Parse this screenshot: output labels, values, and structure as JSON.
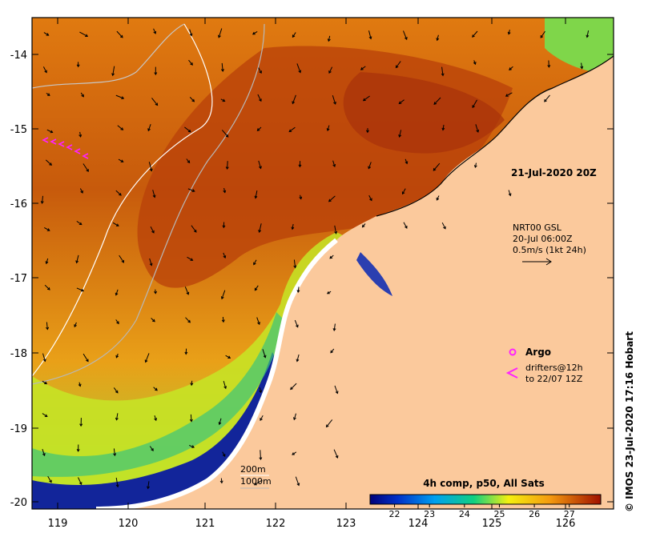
{
  "map": {
    "x_ticks": [
      "119",
      "120",
      "121",
      "122",
      "123",
      "124",
      "125",
      "126"
    ],
    "y_ticks": [
      "-14",
      "-15",
      "-16",
      "-17",
      "-18",
      "-19",
      "-20"
    ],
    "date_label": "21-Jul-2020 20Z",
    "currents": {
      "line1": "NRT00 GSL",
      "line2": "20-Jul 06:00Z",
      "line3": "0.5m/s (1kt 24h)"
    },
    "legend": {
      "argo": "Argo",
      "drifters_line1": "drifters@12h",
      "drifters_line2": "to 22/07 12Z"
    },
    "isobaths": {
      "a": "200m",
      "b": "1000m"
    },
    "colorbar": {
      "title": "4h comp, p50, All Sats",
      "ticks": [
        "22",
        "23",
        "24",
        "25",
        "26",
        "27"
      ],
      "range": [
        21.3,
        27.9
      ]
    },
    "credit": "© IMOS 23-Jul-2020 17:16 Hobart",
    "colors": {
      "land": "#fbc99c",
      "warm": "#c24608",
      "mid": "#e98a14",
      "cool": "#f1ee18",
      "cold": "#1d3fba",
      "drifter": "#ff22ff"
    }
  }
}
